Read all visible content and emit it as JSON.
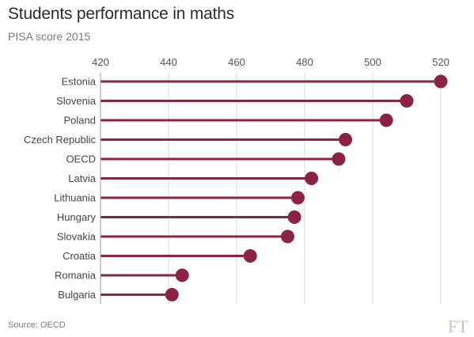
{
  "title": "Students performance in maths",
  "subtitle": "PISA score 2015",
  "source": "Source: OECD",
  "logo_text": "FT",
  "colors": {
    "accent": "#8c2346",
    "grid": "#d9d9d9",
    "axis": "#999999"
  },
  "chart_data": {
    "type": "lollipop",
    "title": "Students performance in maths",
    "subtitle": "PISA score 2015",
    "xlabel": "",
    "ylabel": "",
    "xlim": [
      420,
      520
    ],
    "xticks": [
      420,
      440,
      460,
      480,
      500,
      520
    ],
    "xtick_labels": [
      "420",
      "440",
      "460",
      "480",
      "500",
      "520"
    ],
    "grid": true,
    "legend": "none",
    "categories": [
      "Estonia",
      "Slovenia",
      "Poland",
      "Czech Republic",
      "OECD",
      "Latvia",
      "Lithuania",
      "Hungary",
      "Slovakia",
      "Croatia",
      "Romania",
      "Bulgaria"
    ],
    "values": [
      520,
      510,
      504,
      492,
      490,
      482,
      478,
      477,
      475,
      464,
      444,
      441
    ]
  }
}
